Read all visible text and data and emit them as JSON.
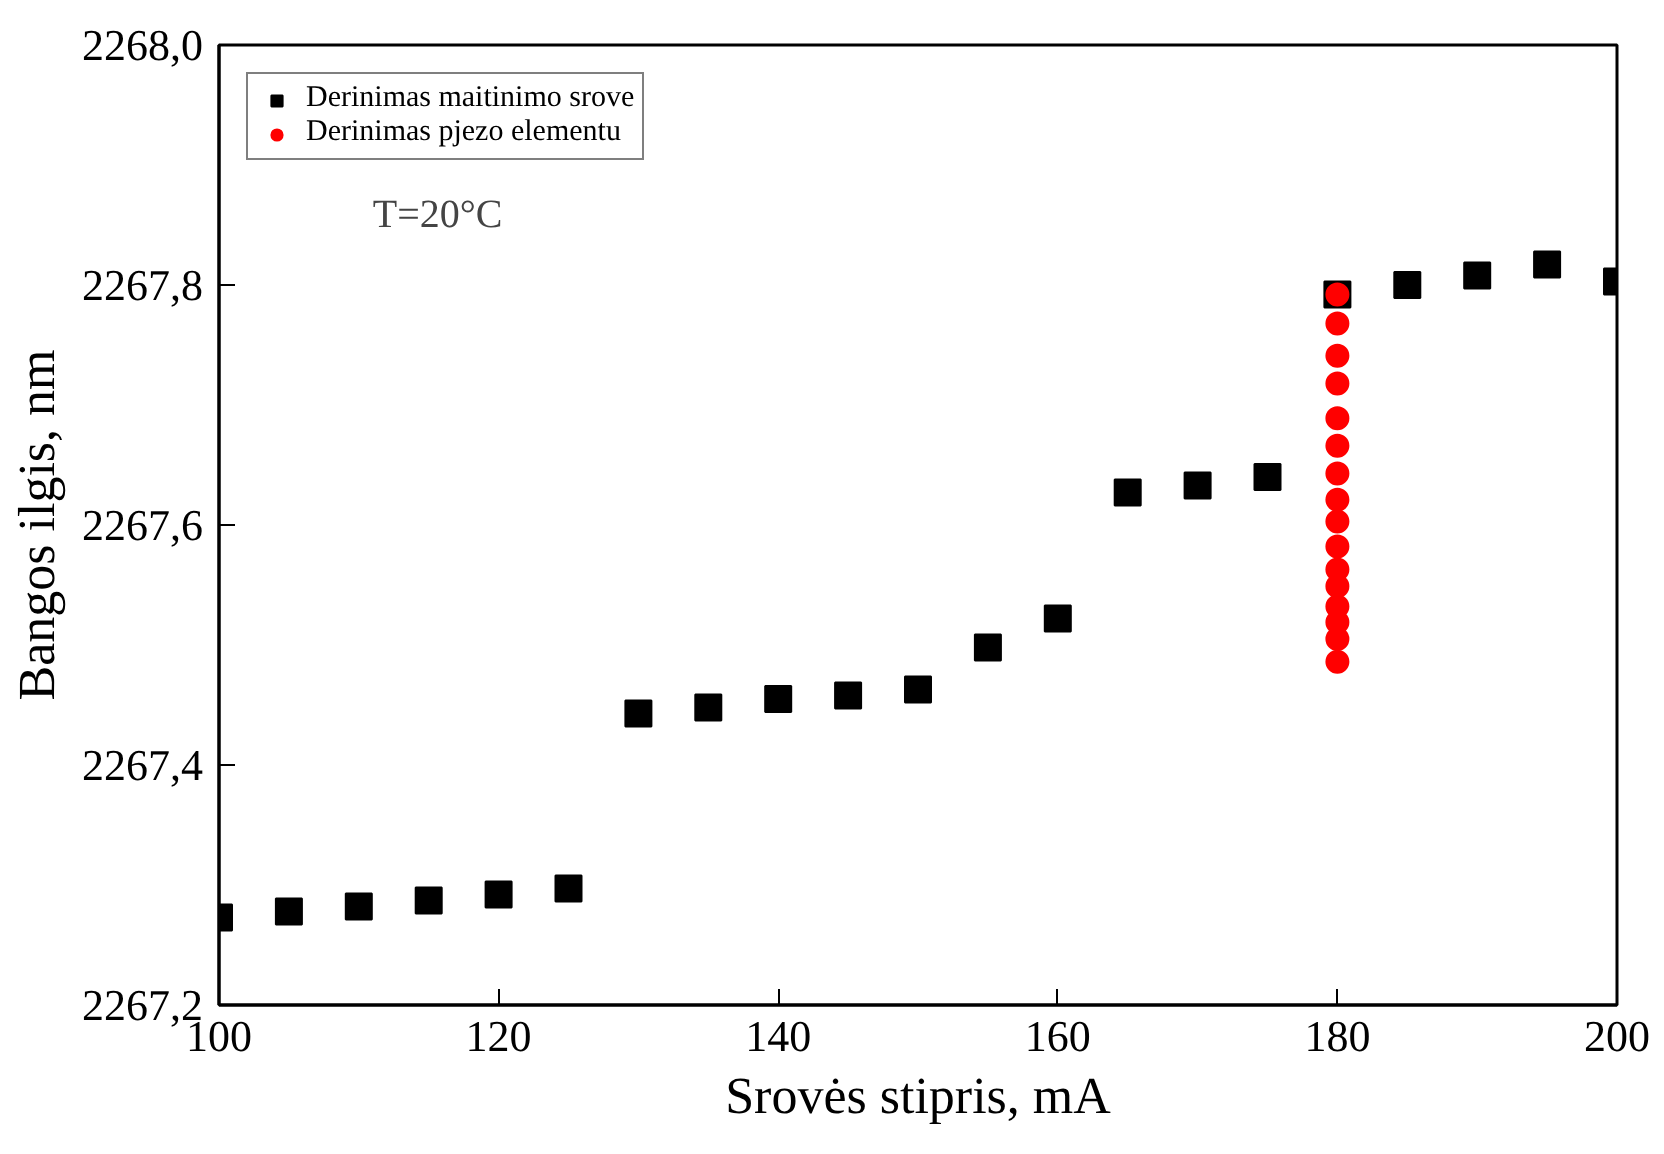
{
  "chart_data": {
    "type": "scatter",
    "xlabel": "Srovės stipris, mA",
    "ylabel": "Bangos ilgis, nm",
    "xlim": [
      100,
      200
    ],
    "xticks": [
      100,
      120,
      140,
      160,
      180,
      200
    ],
    "ylim": [
      2267.2,
      2268.0
    ],
    "yticks": [
      {
        "value": 2267.2,
        "label": "2267,2"
      },
      {
        "value": 2267.4,
        "label": "2267,4"
      },
      {
        "value": 2267.6,
        "label": "2267,6"
      },
      {
        "value": 2267.8,
        "label": "2267,8"
      },
      {
        "value": 2268.0,
        "label": "2268,0"
      }
    ],
    "grid": false,
    "legend": "top left",
    "annotations": [
      "T=20°C"
    ],
    "series": [
      {
        "name": "Derinimas maitinimo srove",
        "color": "#000000",
        "marker": "square",
        "x": [
          100,
          105,
          110,
          115,
          120,
          125,
          130,
          135,
          140,
          145,
          150,
          155,
          160,
          165,
          170,
          175,
          180,
          185,
          190,
          195,
          200
        ],
        "values": [
          2267.273,
          2267.278,
          2267.282,
          2267.287,
          2267.292,
          2267.297,
          2267.443,
          2267.448,
          2267.455,
          2267.458,
          2267.463,
          2267.498,
          2267.522,
          2267.627,
          2267.633,
          2267.64,
          2267.792,
          2267.8,
          2267.808,
          2267.817,
          2267.803
        ]
      },
      {
        "name": "Derinimas pjezo elementu",
        "color": "#ff0000",
        "marker": "circle",
        "x": [
          180,
          180,
          180,
          180,
          180,
          180,
          180,
          180,
          180,
          180,
          180,
          180,
          180,
          180,
          180,
          180
        ],
        "values": [
          2267.792,
          2267.768,
          2267.741,
          2267.718,
          2267.689,
          2267.666,
          2267.643,
          2267.621,
          2267.603,
          2267.582,
          2267.563,
          2267.549,
          2267.532,
          2267.519,
          2267.505,
          2267.486
        ]
      }
    ]
  }
}
